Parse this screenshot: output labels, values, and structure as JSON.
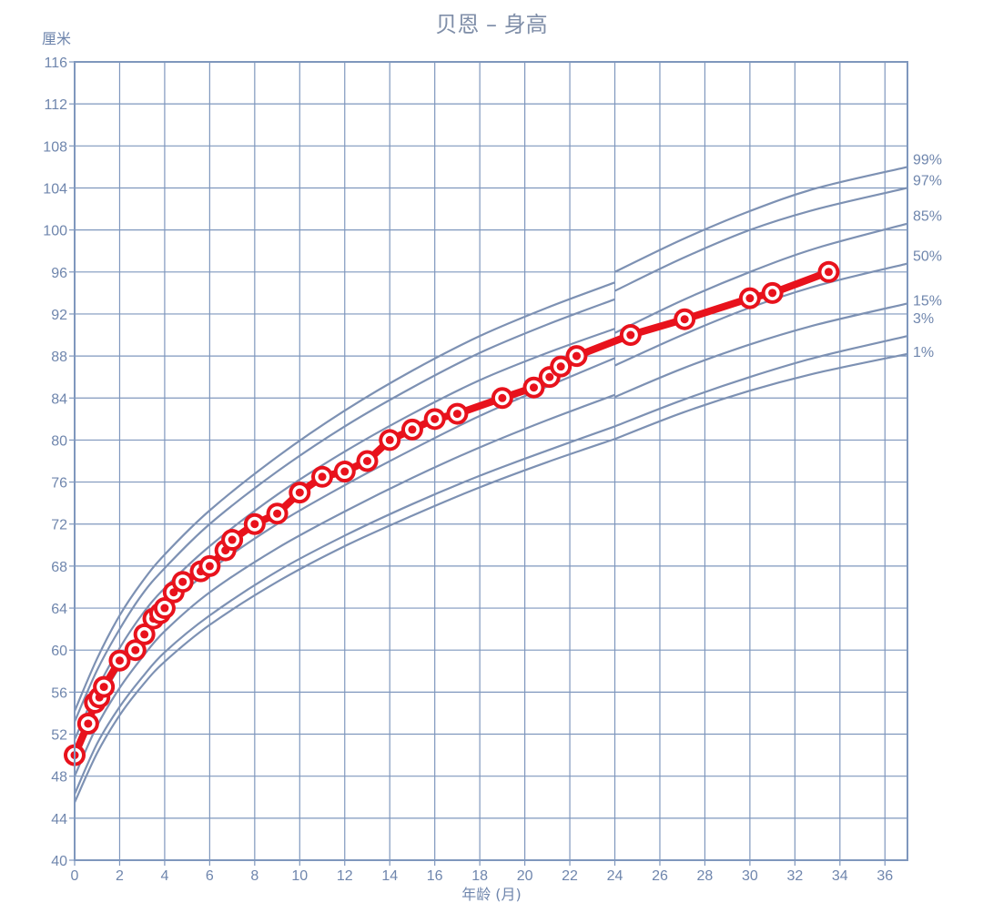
{
  "chart_data": {
    "type": "line",
    "title": "贝恩 – 身高",
    "xlabel": "年龄 (月)",
    "ylabel": "厘米",
    "xlim": [
      0,
      37
    ],
    "ylim": [
      40,
      116
    ],
    "x_ticks": [
      0,
      2,
      4,
      6,
      8,
      10,
      12,
      14,
      16,
      18,
      20,
      22,
      24,
      26,
      28,
      30,
      32,
      34,
      36
    ],
    "y_ticks": [
      40,
      44,
      48,
      52,
      56,
      60,
      64,
      68,
      72,
      76,
      80,
      84,
      88,
      92,
      96,
      100,
      104,
      108,
      112,
      116
    ],
    "grid": true,
    "colors": {
      "grid": "#7f97bd",
      "percentile": "#7d91b3",
      "child": "#e8121c",
      "text": "#6f86ad"
    },
    "percentile_curves": [
      {
        "name": "99%",
        "x": [
          0,
          1,
          2,
          3,
          4,
          6,
          9,
          12,
          15,
          18,
          21,
          24
        ],
        "values": [
          54.2,
          59.2,
          63.3,
          66.5,
          69.1,
          73.3,
          78.4,
          82.8,
          86.6,
          89.9,
          92.6,
          95.0
        ]
      },
      {
        "name": "97%",
        "x": [
          0,
          1,
          2,
          3,
          4,
          6,
          9,
          12,
          15,
          18,
          21,
          24
        ],
        "values": [
          53.2,
          58.1,
          62.0,
          65.3,
          67.8,
          72.0,
          77.0,
          81.3,
          85.0,
          88.3,
          91.0,
          93.4
        ]
      },
      {
        "name": "85%",
        "x": [
          0,
          1,
          2,
          3,
          4,
          6,
          9,
          12,
          15,
          18,
          21,
          24
        ],
        "values": [
          51.5,
          56.3,
          60.2,
          63.4,
          65.9,
          69.9,
          74.8,
          78.9,
          82.5,
          85.7,
          88.3,
          90.6
        ]
      },
      {
        "name": "50%",
        "x": [
          0,
          1,
          2,
          3,
          4,
          6,
          9,
          12,
          15,
          18,
          21,
          24
        ],
        "values": [
          49.9,
          54.7,
          58.4,
          61.4,
          63.9,
          67.6,
          72.0,
          75.7,
          79.1,
          82.3,
          85.1,
          87.8
        ]
      },
      {
        "name": "15%",
        "x": [
          0,
          1,
          2,
          3,
          4,
          6,
          9,
          12,
          15,
          18,
          21,
          24
        ],
        "values": [
          48.0,
          52.8,
          56.4,
          59.3,
          61.8,
          65.5,
          69.7,
          73.2,
          76.4,
          79.3,
          81.9,
          84.3
        ]
      },
      {
        "name": "3%",
        "x": [
          0,
          1,
          2,
          3,
          4,
          6,
          9,
          12,
          15,
          18,
          21,
          24
        ],
        "values": [
          46.3,
          51.1,
          54.6,
          57.4,
          59.8,
          63.3,
          67.5,
          70.9,
          73.9,
          76.6,
          79.0,
          81.3
        ]
      },
      {
        "name": "1%",
        "x": [
          0,
          1,
          2,
          3,
          4,
          6,
          9,
          12,
          15,
          18,
          21,
          24
        ],
        "values": [
          45.5,
          50.2,
          53.8,
          56.6,
          58.9,
          62.4,
          66.5,
          69.9,
          72.8,
          75.5,
          77.9,
          80.1
        ]
      }
    ],
    "percentile_curves_after_24": [
      {
        "name": "99%",
        "x": [
          24,
          27,
          30,
          33,
          37
        ],
        "values": [
          96.0,
          99.1,
          101.8,
          104.0,
          106.0
        ]
      },
      {
        "name": "97%",
        "x": [
          24,
          27,
          30,
          33,
          37
        ],
        "values": [
          94.2,
          97.3,
          100.0,
          102.0,
          104.0
        ]
      },
      {
        "name": "85%",
        "x": [
          24,
          27,
          30,
          33,
          37
        ],
        "values": [
          90.2,
          93.3,
          96.0,
          98.3,
          100.6
        ]
      },
      {
        "name": "50%",
        "x": [
          24,
          27,
          30,
          33,
          37
        ],
        "values": [
          87.1,
          90.0,
          92.6,
          94.7,
          96.8
        ]
      },
      {
        "name": "15%",
        "x": [
          24,
          27,
          30,
          33,
          37
        ],
        "values": [
          84.1,
          86.8,
          89.1,
          91.0,
          93.0
        ]
      },
      {
        "name": "3%",
        "x": [
          24,
          27,
          30,
          33,
          37
        ],
        "values": [
          81.3,
          83.8,
          86.0,
          87.9,
          89.9
        ]
      },
      {
        "name": "1%",
        "x": [
          24,
          27,
          30,
          33,
          37
        ],
        "values": [
          80.1,
          82.6,
          84.7,
          86.4,
          88.2
        ]
      }
    ],
    "series": [
      {
        "x": [
          0,
          0.6,
          0.9,
          1.1,
          1.3,
          2.0,
          2.7,
          3.1,
          3.5,
          3.8,
          4.0,
          4.4,
          4.8,
          5.6,
          6.0,
          6.7,
          7.0,
          8.0,
          9.0,
          10.0,
          11.0,
          12.0,
          13.0,
          14.0,
          15.0,
          16.0,
          17.0,
          19.0,
          20.4,
          21.1,
          21.6,
          22.3,
          24.7,
          27.1,
          30.0,
          31.0,
          33.5
        ],
        "values": [
          50,
          53,
          55,
          55.5,
          56.5,
          59,
          60,
          61.5,
          63,
          63.5,
          64,
          65.5,
          66.5,
          67.5,
          68,
          69.5,
          70.5,
          72,
          73,
          75,
          76.5,
          77,
          78,
          80,
          81,
          82,
          82.5,
          84,
          85,
          86,
          87,
          88,
          90,
          91.5,
          93.5,
          94,
          96
        ]
      }
    ]
  }
}
